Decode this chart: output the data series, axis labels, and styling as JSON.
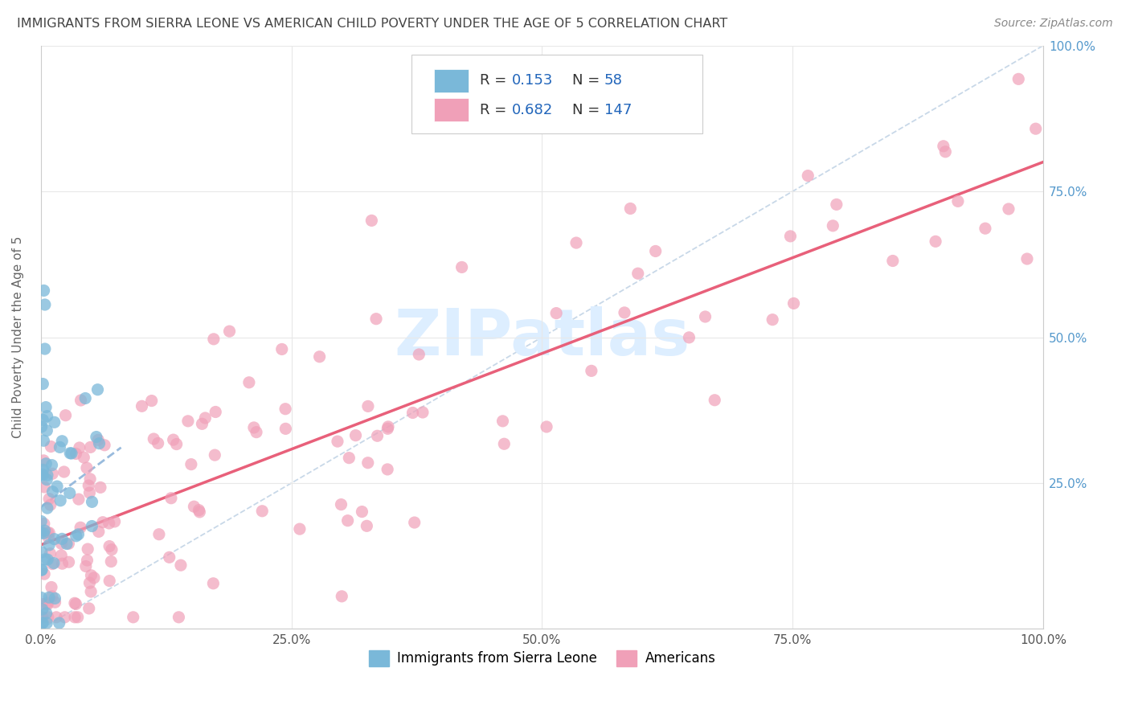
{
  "title": "IMMIGRANTS FROM SIERRA LEONE VS AMERICAN CHILD POVERTY UNDER THE AGE OF 5 CORRELATION CHART",
  "source": "Source: ZipAtlas.com",
  "ylabel": "Child Poverty Under the Age of 5",
  "xlim": [
    0,
    1.0
  ],
  "ylim": [
    0,
    1.0
  ],
  "xticks": [
    0.0,
    0.25,
    0.5,
    0.75,
    1.0
  ],
  "yticks": [
    0.0,
    0.25,
    0.5,
    0.75,
    1.0
  ],
  "xticklabels": [
    "0.0%",
    "25.0%",
    "50.0%",
    "75.0%",
    "100.0%"
  ],
  "right_yticklabels": [
    "",
    "25.0%",
    "50.0%",
    "75.0%",
    "100.0%"
  ],
  "legend_labels": [
    "Immigrants from Sierra Leone",
    "Americans"
  ],
  "blue_color": "#7ab8d9",
  "pink_color": "#f0a0b8",
  "blue_line_color": "#99bbdd",
  "pink_line_color": "#e8607a",
  "diag_color": "#c8d8e8",
  "grid_color": "#e8e8e8",
  "background_color": "#ffffff",
  "watermark_color": "#ddeeff",
  "right_tick_color": "#5599cc",
  "title_color": "#444444",
  "source_color": "#888888"
}
